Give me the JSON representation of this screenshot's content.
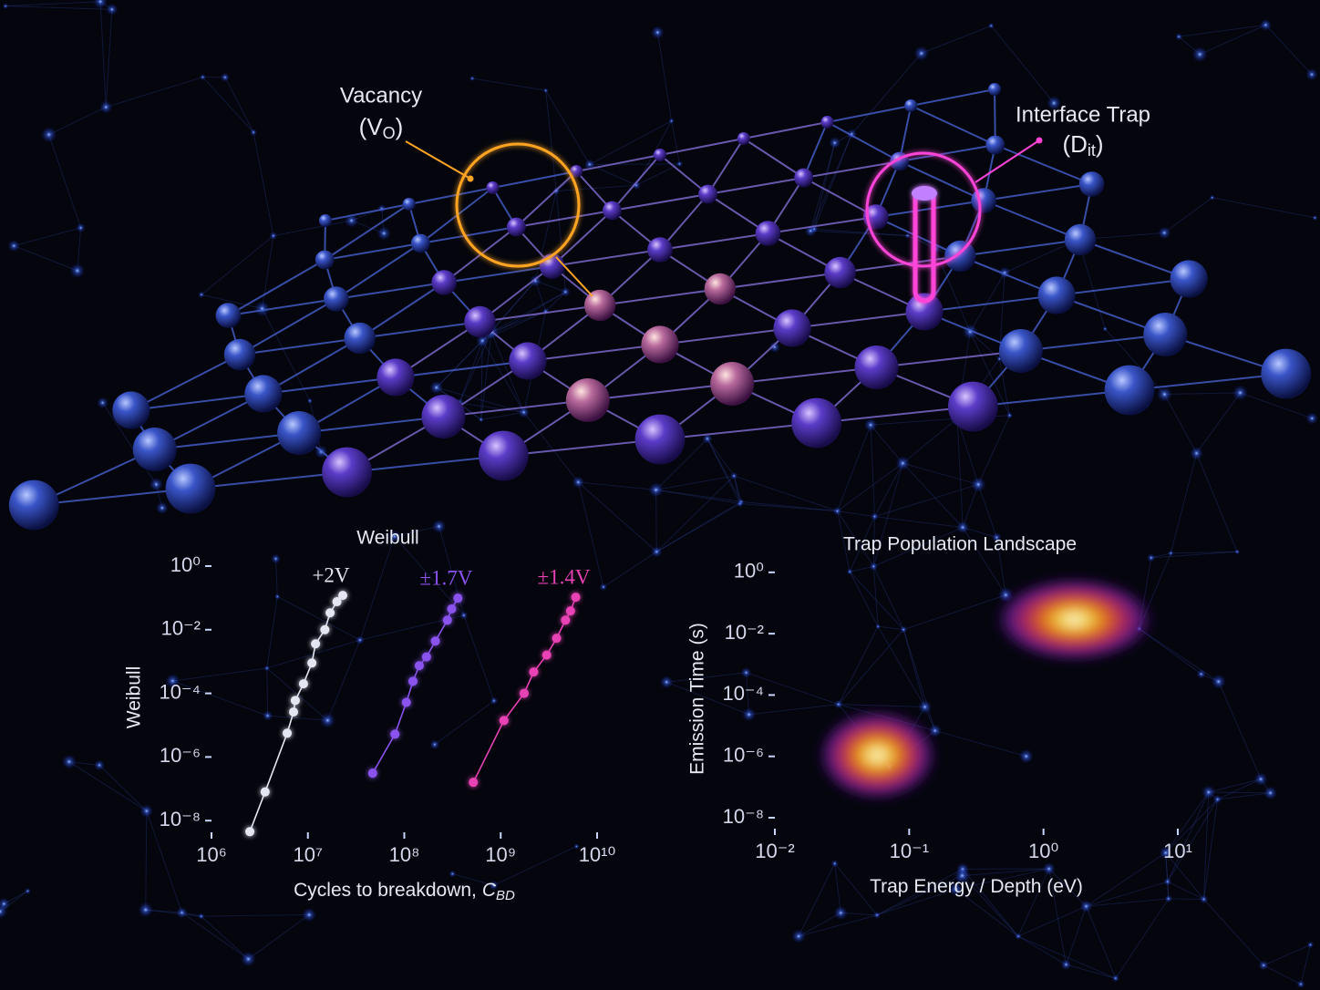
{
  "annotations": [
    {
      "text": "Vacancy",
      "symbol": "(V",
      "subscript": "O",
      "close": ")",
      "color": "#ffa424"
    },
    {
      "text": "Interface Trap",
      "symbol": "(D",
      "subscript": "it",
      "close": ")",
      "color": "#ff44d8"
    }
  ],
  "chart_data": [
    {
      "type": "scatter",
      "title": "Weibull",
      "ylabel": "Weibull",
      "xlabel": "Cycles to breakdown,",
      "xlabel_symbol": "C",
      "xlabel_subscript": "BD",
      "xscale": "log",
      "yscale": "log",
      "xlim": [
        1000000,
        10000000000
      ],
      "ylim": [
        4.3e-09,
        1.3
      ],
      "xticks": [
        {
          "value": 1000000,
          "label": "10⁶"
        },
        {
          "value": 10000000,
          "label": "10⁷"
        },
        {
          "value": 100000000,
          "label": "10⁸"
        },
        {
          "value": 1000000000,
          "label": "10⁹"
        },
        {
          "value": 10000000000,
          "label": "10¹⁰"
        }
      ],
      "yticks": [
        {
          "value": 1,
          "label": "10⁰"
        },
        {
          "value": 0.01,
          "label": "10⁻²"
        },
        {
          "value": 0.0001,
          "label": "10⁻⁴"
        },
        {
          "value": 1e-06,
          "label": "10⁻⁶"
        },
        {
          "value": 1e-08,
          "label": "10⁻⁸"
        }
      ],
      "series": [
        {
          "name": "+2V",
          "color": "#e4e6f2",
          "x": [
            2500000,
            3600000,
            6100000,
            7100000,
            7400000,
            9000000,
            11000000,
            12000000,
            15000000,
            17000000,
            20000000,
            23000000
          ],
          "values": [
            4.5e-09,
            8e-08,
            5.6e-06,
            2.6e-05,
            6e-05,
            0.0002,
            0.0009,
            0.0036,
            0.01,
            0.034,
            0.076,
            0.12
          ]
        },
        {
          "name": "±1.7V",
          "color": "#8a52ee",
          "x": [
            47000000,
            80000000,
            105000000,
            123000000,
            143000000,
            170000000,
            210000000,
            280000000,
            310000000,
            360000000
          ],
          "values": [
            3.1e-07,
            5.2e-06,
            5.2e-05,
            0.00024,
            0.00074,
            0.0014,
            0.0044,
            0.02,
            0.045,
            0.098
          ]
        },
        {
          "name": "±1.4V",
          "color": "#e842b4",
          "x": [
            520000000,
            1080000000,
            1750000000,
            2200000000,
            3000000000,
            3800000000,
            4700000000,
            5300000000,
            6000000000
          ],
          "values": [
            1.6e-07,
            1.4e-05,
            0.0001,
            0.00047,
            0.0016,
            0.0054,
            0.02,
            0.039,
            0.105
          ]
        }
      ]
    },
    {
      "type": "density",
      "title": "Trap Population Landscape",
      "ylabel": "Emission Time (s)",
      "xlabel": "Trap Energy / Depth (eV)",
      "xscale": "log",
      "yscale": "log",
      "xlim": [
        0.01,
        10
      ],
      "ylim": [
        4.4e-09,
        1.3
      ],
      "xticks": [
        {
          "value": 0.01,
          "label": "10⁻²"
        },
        {
          "value": 0.1,
          "label": "10⁻¹"
        },
        {
          "value": 1,
          "label": "10⁰"
        },
        {
          "value": 10,
          "label": "10¹"
        }
      ],
      "yticks": [
        {
          "value": 1,
          "label": "10⁰"
        },
        {
          "value": 0.01,
          "label": "10⁻²"
        },
        {
          "value": 0.0001,
          "label": "10⁻⁴"
        },
        {
          "value": 1e-06,
          "label": "10⁻⁶"
        },
        {
          "value": 1e-08,
          "label": "10⁻⁸"
        }
      ],
      "colormap": [
        "#2a0c66",
        "#7a1ea6",
        "#d8306e",
        "#ff7a1a",
        "#ffd84a",
        "#fffbe6"
      ],
      "clusters": [
        {
          "x": 0.058,
          "y": 1.1e-06,
          "x_spread": 0.45,
          "y_spread": 1.5
        },
        {
          "x": 1.7,
          "y": 0.029,
          "x_spread": 0.6,
          "y_spread": 1.4
        }
      ]
    }
  ]
}
